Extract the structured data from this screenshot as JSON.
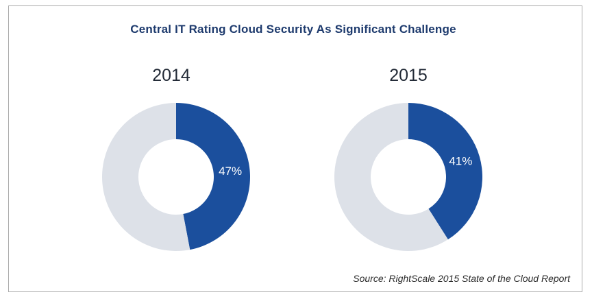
{
  "title": "Central IT Rating Cloud Security As Significant Challenge",
  "source": "Source: RightScale 2015 State of the Cloud Report",
  "colors": {
    "highlight": "#1b4f9d",
    "rest": "#dde1e8",
    "title": "#1d3a6d"
  },
  "chart_data": [
    {
      "type": "pie",
      "variant": "donut",
      "title": "2014",
      "values": [
        47,
        53
      ],
      "data_labels": [
        "47%"
      ]
    },
    {
      "type": "pie",
      "variant": "donut",
      "title": "2015",
      "values": [
        41,
        59
      ],
      "data_labels": [
        "41%"
      ]
    }
  ]
}
